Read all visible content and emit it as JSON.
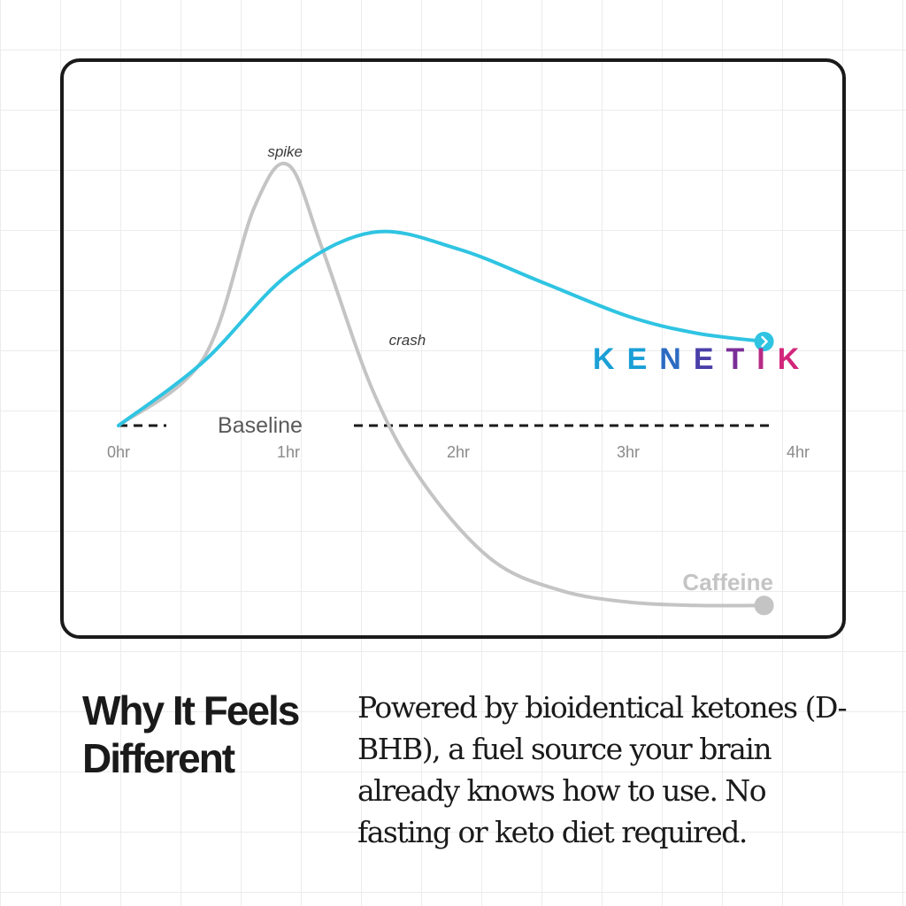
{
  "chart_data": {
    "type": "line",
    "x_ticks": [
      "0hr",
      "1hr",
      "2hr",
      "3hr",
      "4hr"
    ],
    "xlim": [
      0,
      4
    ],
    "baseline_label": "Baseline",
    "series": [
      {
        "name": "Caffeine",
        "color": "#c4c4c4",
        "x": [
          0,
          0.5,
          0.8,
          1.0,
          1.2,
          1.5,
          1.8,
          2.2,
          2.6,
          3.0,
          3.4,
          3.8
        ],
        "y": [
          0,
          0.4,
          1.3,
          1.55,
          1.05,
          0.2,
          -0.35,
          -0.8,
          -0.98,
          -1.05,
          -1.07,
          -1.07
        ],
        "end_marker": "dot"
      },
      {
        "name": "KENETIK",
        "color": "#2fc4e2",
        "x": [
          0,
          0.5,
          1.0,
          1.5,
          2.0,
          2.5,
          3.0,
          3.4,
          3.8
        ],
        "y": [
          0,
          0.38,
          0.9,
          1.15,
          1.05,
          0.85,
          0.65,
          0.55,
          0.5
        ],
        "end_marker": "chevron"
      }
    ],
    "annotations": [
      {
        "text": "spike",
        "x": 0.98,
        "y": 1.6
      },
      {
        "text": "crash",
        "x": 1.7,
        "y": 0.48
      }
    ]
  },
  "brand": {
    "letters": [
      "K",
      "E",
      "N",
      "E",
      "T",
      "I",
      "K"
    ],
    "colors": [
      "#1a9fd6",
      "#1a9fd6",
      "#2d6bc2",
      "#4a3fa8",
      "#7a2f98",
      "#b72a86",
      "#d2267b"
    ]
  },
  "heading": "Why It Feels Different",
  "body": "Powered by bioidentical ketones (D-BHB), a fuel source your brain already knows how to use. No fasting or keto diet required."
}
